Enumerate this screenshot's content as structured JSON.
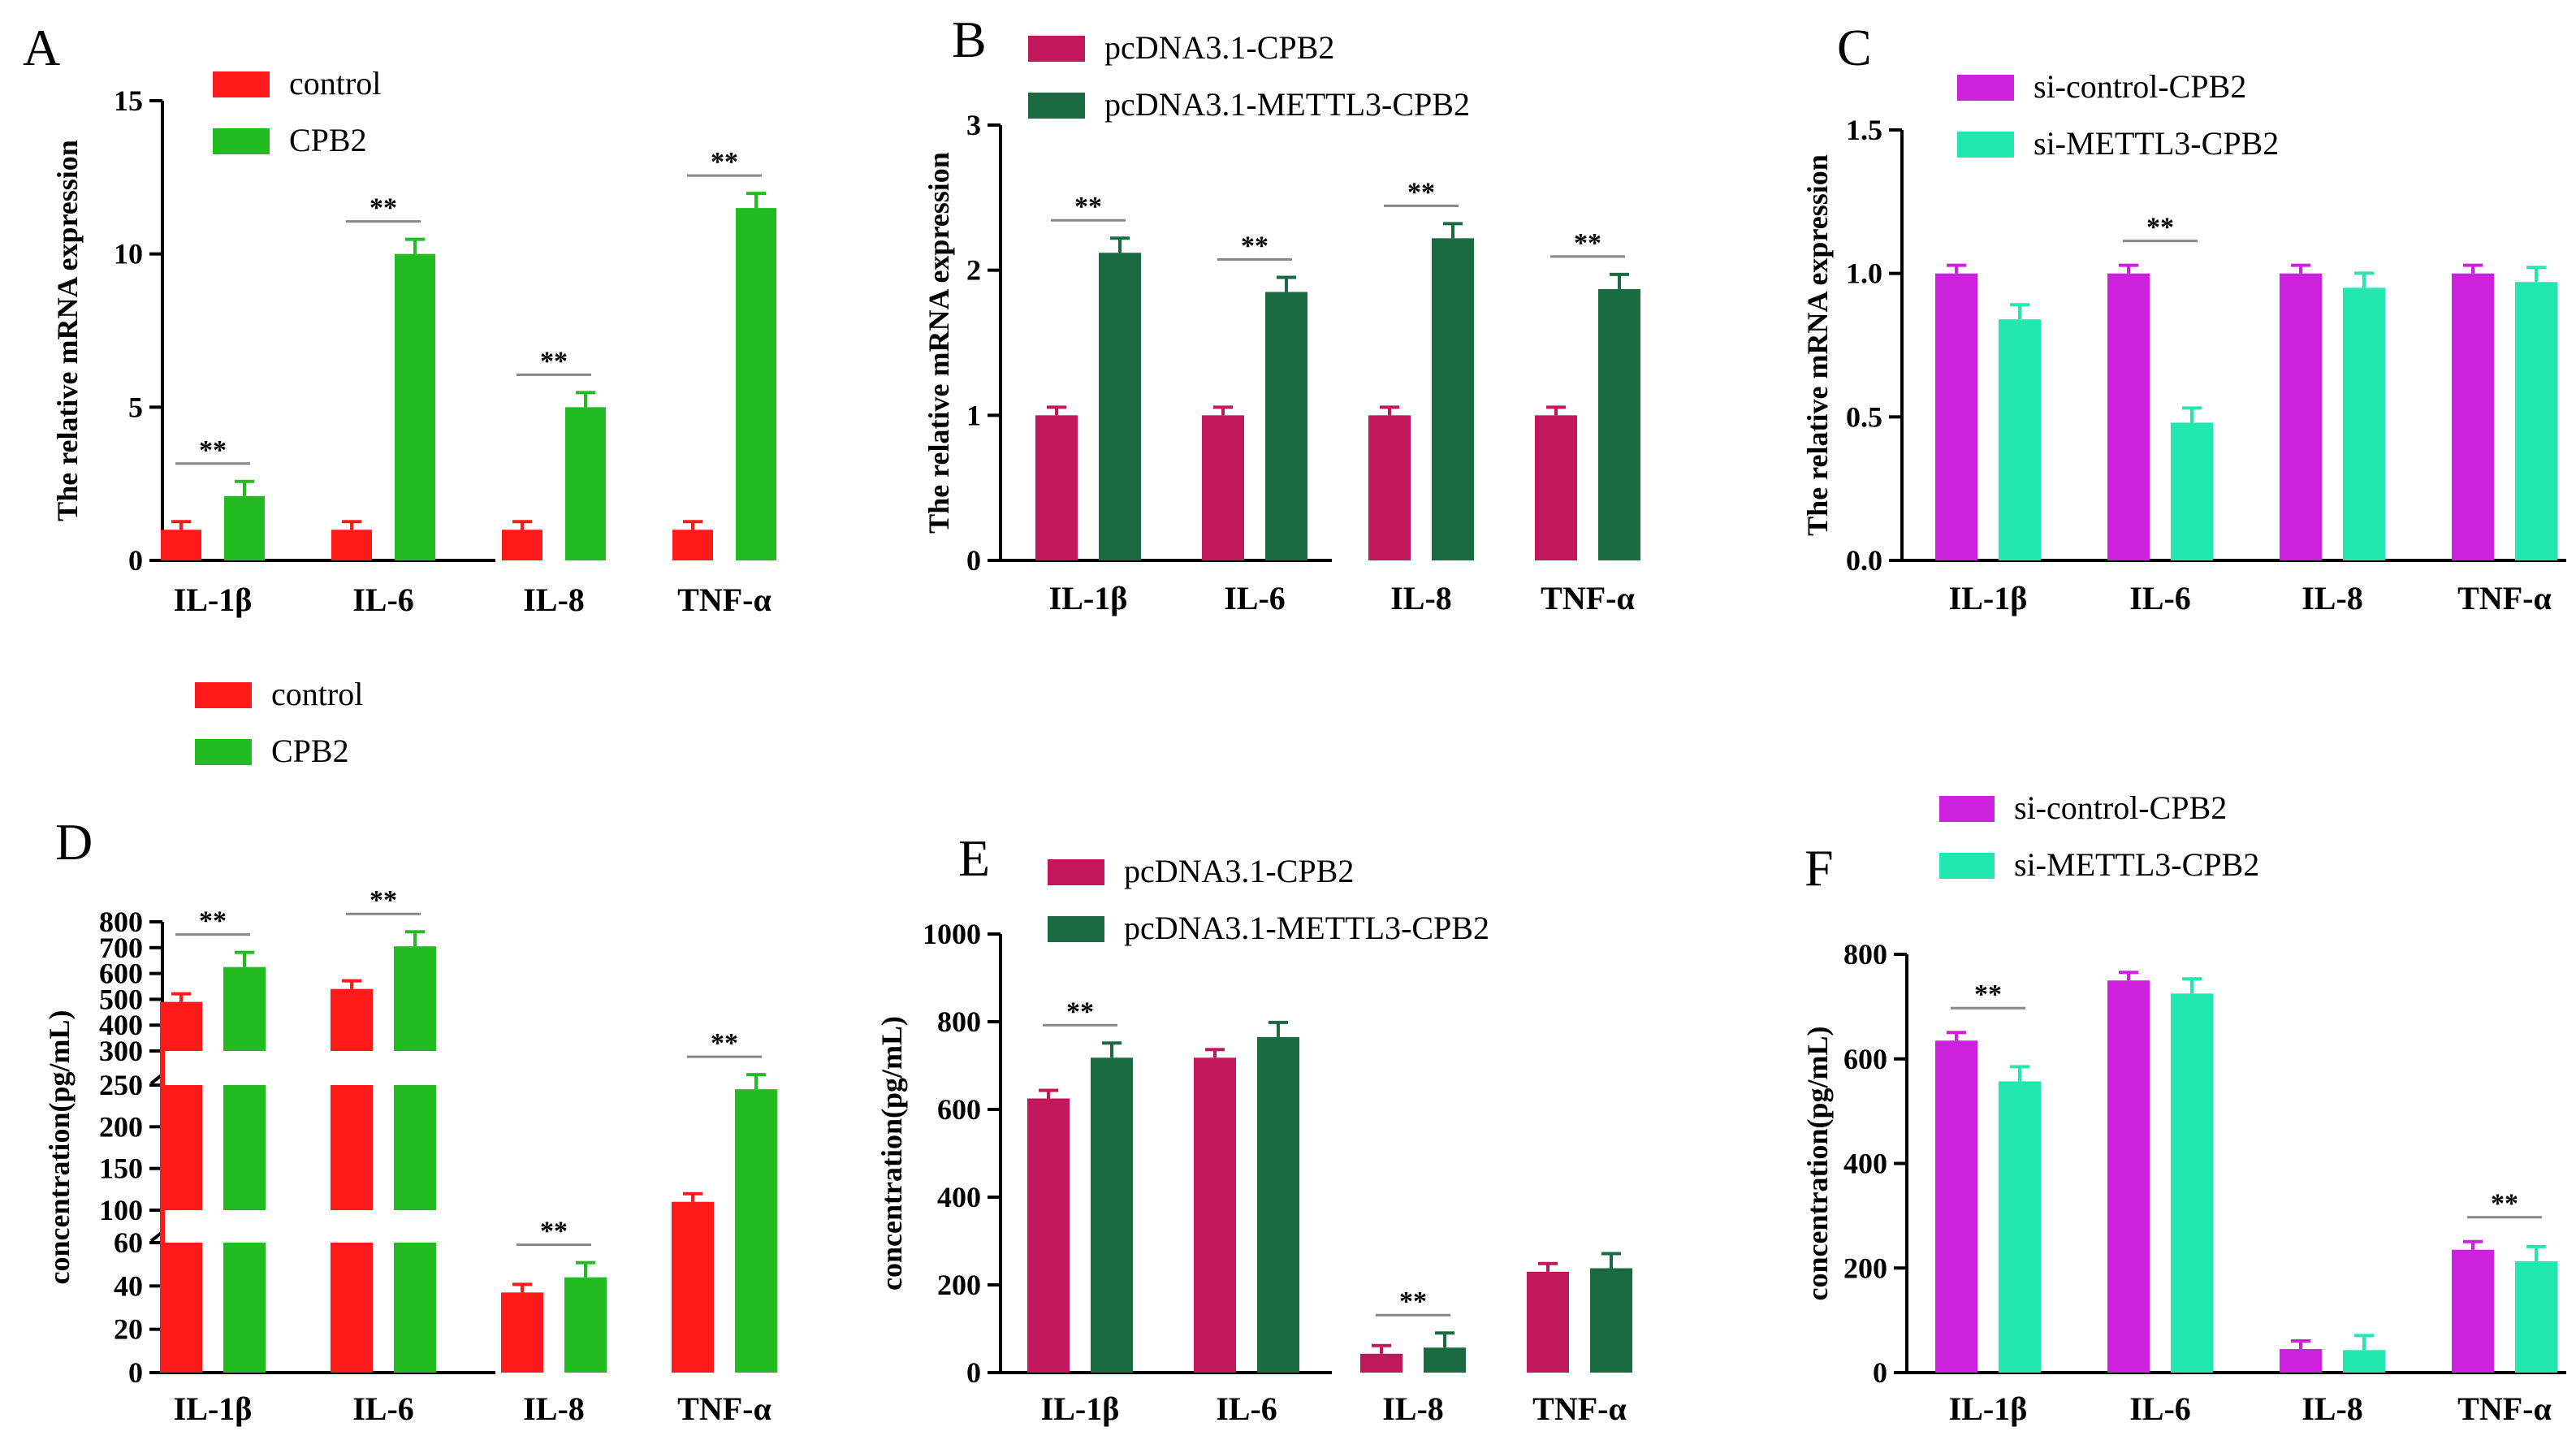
{
  "chart_data": [
    {
      "panel": "A",
      "type": "bar",
      "categories": [
        "IL-1β",
        "IL-6",
        "IL-8",
        "TNF-α"
      ],
      "series": [
        {
          "name": "control",
          "color": "#ff1a1a",
          "values": [
            1,
            1,
            1,
            1
          ]
        },
        {
          "name": "CPB2",
          "color": "#22bb22",
          "values": [
            2.1,
            10,
            5,
            11.5
          ]
        }
      ],
      "ylabel": "The relative mRNA expression",
      "ylim": [
        0,
        15
      ],
      "yticks": [
        0,
        5,
        10,
        15
      ],
      "ytick_labels": [
        "0",
        "5",
        "10",
        "15"
      ],
      "significance": [
        {
          "category": "IL-1β",
          "label": "**"
        },
        {
          "category": "IL-6",
          "label": "**"
        },
        {
          "category": "IL-8",
          "label": "**"
        },
        {
          "category": "TNF-α",
          "label": "**"
        }
      ],
      "legend": "top-left"
    },
    {
      "panel": "B",
      "type": "bar",
      "categories": [
        "IL-1β",
        "IL-6",
        "IL-8",
        "TNF-α"
      ],
      "series": [
        {
          "name": "pcDNA3.1-CPB2",
          "color": "#c2185b",
          "values": [
            1,
            1,
            1,
            1
          ]
        },
        {
          "name": "pcDNA3.1-METTL3-CPB2",
          "color": "#1b6b42",
          "values": [
            2.12,
            1.85,
            2.22,
            1.87
          ]
        }
      ],
      "ylabel": "The relative mRNA expression",
      "ylim": [
        0,
        3
      ],
      "yticks": [
        0,
        1,
        2,
        3
      ],
      "ytick_labels": [
        "0",
        "1",
        "2",
        "3"
      ],
      "significance": [
        {
          "category": "IL-1β",
          "label": "**"
        },
        {
          "category": "IL-6",
          "label": "**"
        },
        {
          "category": "IL-8",
          "label": "**"
        },
        {
          "category": "TNF-α",
          "label": "**"
        }
      ],
      "legend": "top"
    },
    {
      "panel": "C",
      "type": "bar",
      "categories": [
        "IL-1β",
        "IL-6",
        "IL-8",
        "TNF-α"
      ],
      "series": [
        {
          "name": "si-control-CPB2",
          "color": "#cc22dd",
          "values": [
            1,
            1,
            1,
            1
          ]
        },
        {
          "name": "si-METTL3-CPB2",
          "color": "#22e8b0",
          "values": [
            0.84,
            0.48,
            0.95,
            0.97
          ]
        }
      ],
      "ylabel": "The relative mRNA expression",
      "ylim": [
        0,
        1.5
      ],
      "yticks": [
        0,
        0.5,
        1.0,
        1.5
      ],
      "ytick_labels": [
        "0.0",
        "0.5",
        "1.0",
        "1.5"
      ],
      "significance": [
        {
          "category": "IL-6",
          "label": "**"
        }
      ],
      "legend": "top"
    },
    {
      "panel": "D",
      "type": "bar",
      "categories": [
        "IL-1β",
        "IL-6",
        "IL-8",
        "TNF-α"
      ],
      "series": [
        {
          "name": "control",
          "color": "#ff1a1a",
          "values": [
            490,
            540,
            37,
            110
          ]
        },
        {
          "name": "CPB2",
          "color": "#22bb22",
          "values": [
            625,
            705,
            44,
            245
          ]
        }
      ],
      "ylabel": "concentration(pg/mL)",
      "ylim": [
        0,
        800
      ],
      "axis_break": {
        "segments": [
          {
            "range": [
              0,
              60
            ],
            "ticks": [
              0,
              20,
              40,
              60
            ]
          },
          {
            "range": [
              100,
              250
            ],
            "ticks": [
              100,
              150,
              200,
              250
            ]
          },
          {
            "range": [
              300,
              800
            ],
            "ticks": [
              300,
              400,
              500,
              600,
              700,
              800
            ]
          }
        ]
      },
      "significance": [
        {
          "category": "IL-1β",
          "label": "**"
        },
        {
          "category": "IL-6",
          "label": "**"
        },
        {
          "category": "IL-8",
          "label": "**"
        },
        {
          "category": "TNF-α",
          "label": "**"
        }
      ],
      "legend": "top-left"
    },
    {
      "panel": "E",
      "type": "bar",
      "categories": [
        "IL-1β",
        "IL-6",
        "IL-8",
        "TNF-α"
      ],
      "series": [
        {
          "name": "pcDNA3.1-CPB2",
          "color": "#c2185b",
          "values": [
            625,
            718,
            43,
            230
          ]
        },
        {
          "name": "pcDNA3.1-METTL3-CPB2",
          "color": "#1b6b42",
          "values": [
            718,
            765,
            57,
            238
          ]
        }
      ],
      "ylabel": "concentration(pg/mL)",
      "ylim": [
        0,
        1000
      ],
      "yticks": [
        0,
        200,
        400,
        600,
        800,
        1000
      ],
      "ytick_labels": [
        "0",
        "200",
        "400",
        "600",
        "800",
        "1000"
      ],
      "significance": [
        {
          "category": "IL-1β",
          "label": "**"
        },
        {
          "category": "IL-8",
          "label": "**"
        }
      ],
      "legend": "top-right"
    },
    {
      "panel": "F",
      "type": "bar",
      "categories": [
        "IL-1β",
        "IL-6",
        "IL-8",
        "TNF-α"
      ],
      "series": [
        {
          "name": "si-control-CPB2",
          "color": "#cc22dd",
          "values": [
            635,
            750,
            45,
            235
          ]
        },
        {
          "name": "si-METTL3-CPB2",
          "color": "#22e8b0",
          "values": [
            557,
            725,
            43,
            213
          ]
        }
      ],
      "ylabel": "concentration(pg/mL)",
      "ylim": [
        0,
        800
      ],
      "yticks": [
        0,
        200,
        400,
        600,
        800
      ],
      "ytick_labels": [
        "0",
        "200",
        "400",
        "600",
        "800"
      ],
      "significance": [
        {
          "category": "IL-1β",
          "label": "**"
        },
        {
          "category": "TNF-α",
          "label": "**"
        }
      ],
      "legend": "top"
    }
  ]
}
